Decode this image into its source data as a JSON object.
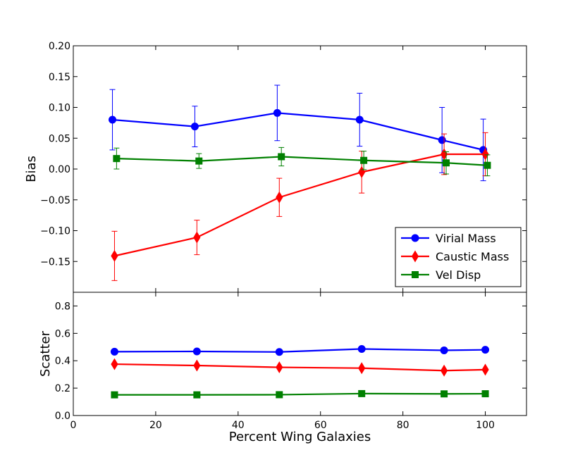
{
  "chart_data": [
    {
      "type": "line",
      "panel": "top",
      "ylabel": "Bias",
      "xlabel": "",
      "xlim": [
        0,
        110
      ],
      "ylim": [
        -0.2,
        0.2
      ],
      "yticks": [
        "0.20",
        "0.15",
        "0.10",
        "0.05",
        "0.00",
        "−0.05",
        "−0.10",
        "−0.15"
      ],
      "ytick_values": [
        0.2,
        0.15,
        0.1,
        0.05,
        0.0,
        -0.05,
        -0.1,
        -0.15
      ],
      "grid": false,
      "legend_position": "lower-right",
      "series": [
        {
          "name": "Virial Mass",
          "color": "#0000ff",
          "marker": "circle",
          "x": [
            9.5,
            29.5,
            49.5,
            69.5,
            89.5,
            99.5
          ],
          "y": [
            0.08,
            0.069,
            0.091,
            0.08,
            0.047,
            0.031
          ],
          "err": [
            0.049,
            0.033,
            0.045,
            0.043,
            0.053,
            0.05
          ]
        },
        {
          "name": "Caustic Mass",
          "color": "#ff0000",
          "marker": "diamond",
          "x": [
            10.0,
            30.0,
            50.0,
            70.0,
            90.0,
            100.0
          ],
          "y": [
            -0.141,
            -0.111,
            -0.046,
            -0.005,
            0.024,
            0.024
          ],
          "err": [
            0.04,
            0.028,
            0.031,
            0.034,
            0.033,
            0.035
          ]
        },
        {
          "name": "Vel Disp",
          "color": "#008000",
          "marker": "square",
          "x": [
            10.5,
            30.5,
            50.5,
            70.5,
            90.5,
            100.5
          ],
          "y": [
            0.017,
            0.013,
            0.02,
            0.014,
            0.01,
            0.006
          ],
          "err": [
            0.017,
            0.012,
            0.015,
            0.015,
            0.018,
            0.017
          ]
        }
      ]
    },
    {
      "type": "line",
      "panel": "bottom",
      "ylabel": "Scatter",
      "xlabel": "Percent Wing Galaxies",
      "xlim": [
        0,
        110
      ],
      "ylim": [
        0.0,
        0.9
      ],
      "xticks": [
        "0",
        "20",
        "40",
        "60",
        "80",
        "100"
      ],
      "xtick_values": [
        0,
        20,
        40,
        60,
        80,
        100
      ],
      "yticks": [
        "0.8",
        "0.6",
        "0.4",
        "0.2",
        "0.0"
      ],
      "ytick_values": [
        0.8,
        0.6,
        0.4,
        0.2,
        0.0
      ],
      "grid": false,
      "series": [
        {
          "name": "Virial Mass",
          "color": "#0000ff",
          "marker": "circle",
          "x": [
            10,
            30,
            50,
            70,
            90,
            100
          ],
          "y": [
            0.466,
            0.468,
            0.464,
            0.486,
            0.476,
            0.48
          ]
        },
        {
          "name": "Caustic Mass",
          "color": "#ff0000",
          "marker": "diamond",
          "x": [
            10,
            30,
            50,
            70,
            90,
            100
          ],
          "y": [
            0.375,
            0.365,
            0.352,
            0.346,
            0.328,
            0.335
          ]
        },
        {
          "name": "Vel Disp",
          "color": "#008000",
          "marker": "square",
          "x": [
            10,
            30,
            50,
            70,
            90,
            100
          ],
          "y": [
            0.151,
            0.151,
            0.152,
            0.16,
            0.158,
            0.159
          ]
        }
      ]
    }
  ]
}
